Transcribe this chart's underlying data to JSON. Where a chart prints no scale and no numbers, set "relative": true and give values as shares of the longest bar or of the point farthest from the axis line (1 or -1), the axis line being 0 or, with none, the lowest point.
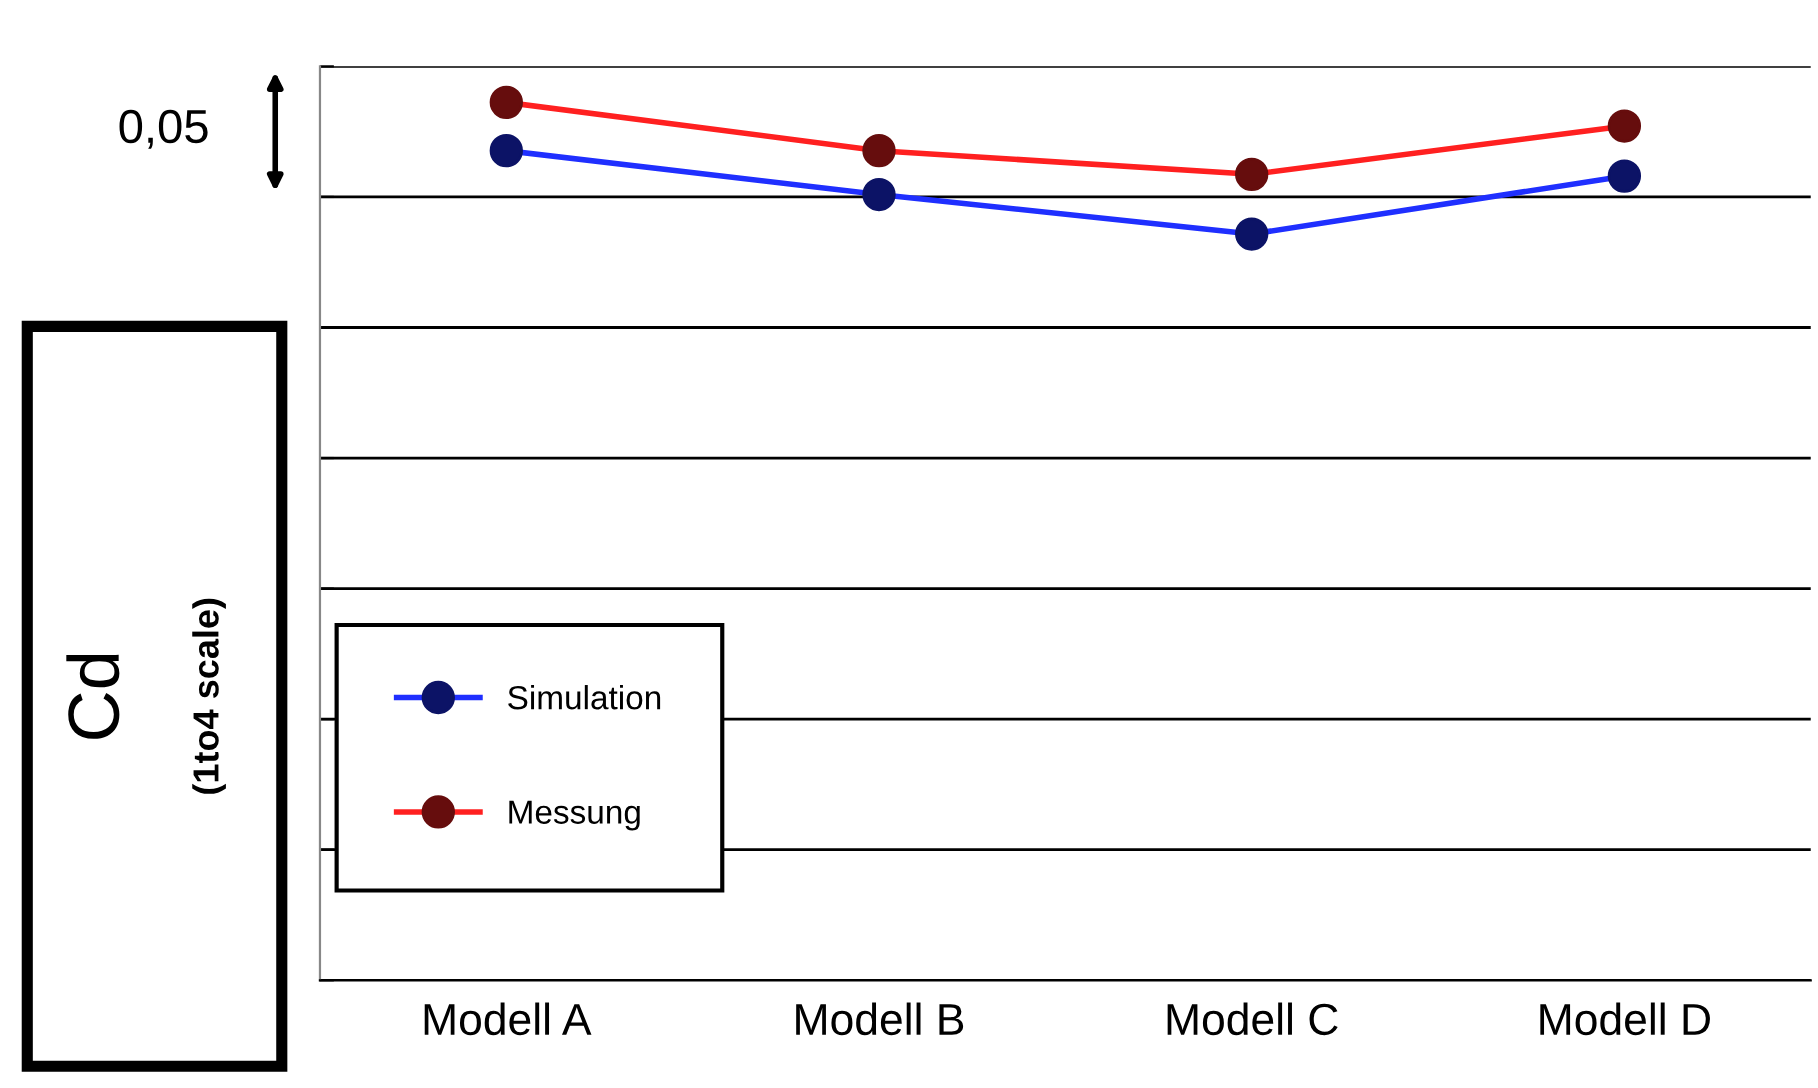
{
  "chart_data": {
    "type": "line",
    "relative": true,
    "ylabel": "Cd\n(1to4 scale)",
    "categories": [
      "Modell A",
      "Modell B",
      "Modell C",
      "Modell D"
    ],
    "series": [
      {
        "name": "Simulation",
        "color": "#1f2fff",
        "values": [
          0.945,
          0.895,
          0.85,
          0.916
        ]
      },
      {
        "name": "Messung",
        "color": "#ff2020",
        "values": [
          1,
          0.945,
          0.918,
          0.973
        ]
      }
    ],
    "annotations": [
      "0,05"
    ],
    "marker": "circle",
    "line_style": "solid",
    "grid": "y",
    "legend": "bottom left"
  }
}
